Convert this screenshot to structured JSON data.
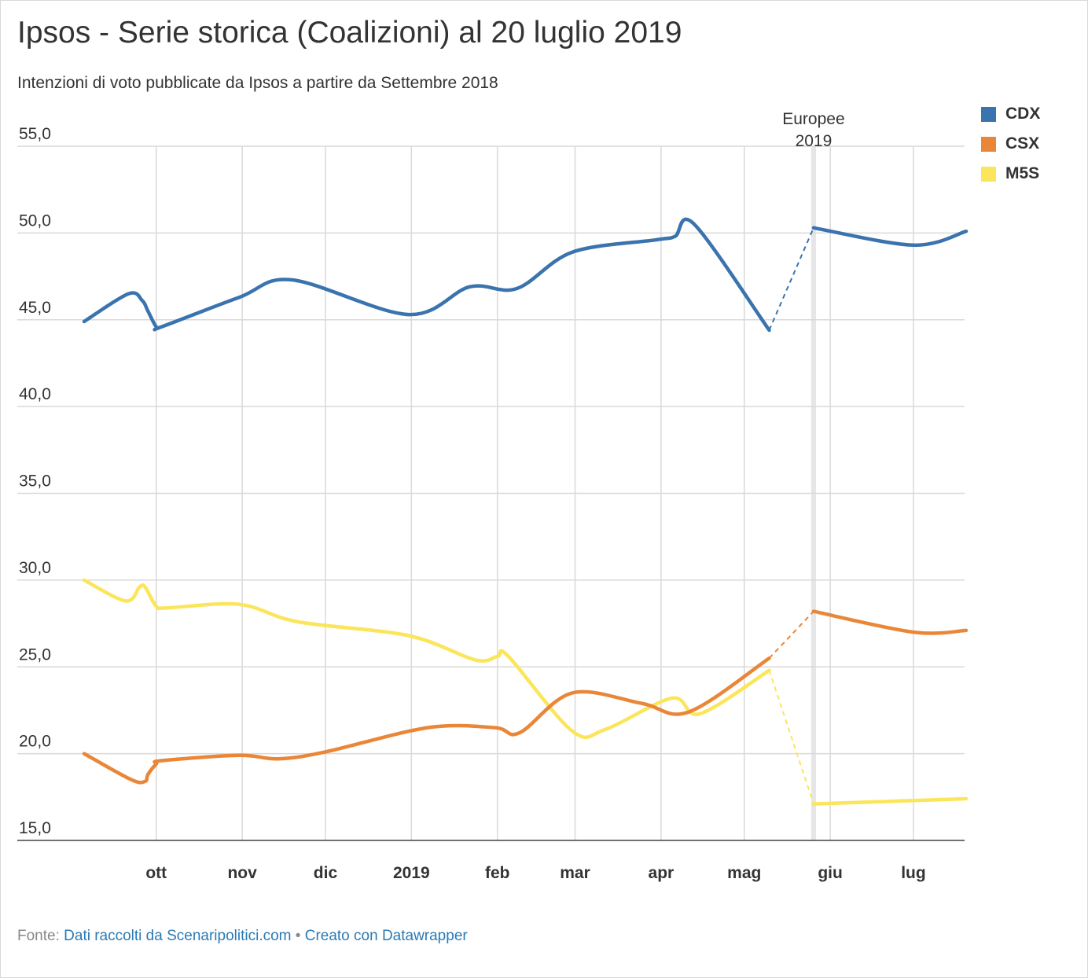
{
  "header": {
    "title": "Ipsos - Serie storica (Coalizioni) al 20 luglio 2019",
    "subtitle": "Intenzioni di voto pubblicate da Ipsos a partire da Settembre 2018"
  },
  "legend": [
    {
      "label": "CDX",
      "color": "#3a73ad"
    },
    {
      "label": "CSX",
      "color": "#ea8637"
    },
    {
      "label": "M5S",
      "color": "#fbe55b"
    }
  ],
  "footer": {
    "prefix": "Fonte:",
    "source": "Dati raccolti da Scenaripolitici.com",
    "separator": "•",
    "credit": "Creato con Datawrapper"
  },
  "chart_data": {
    "type": "line",
    "title": "Ipsos - Serie storica (Coalizioni) al 20 luglio 2019",
    "subtitle": "Intenzioni di voto pubblicate da Ipsos a partire da Settembre 2018",
    "ylim": [
      15,
      55
    ],
    "y_ticks": [
      15,
      20,
      25,
      30,
      35,
      40,
      45,
      50,
      55
    ],
    "y_tick_labels": [
      "15,0",
      "20,0",
      "25,0",
      "30,0",
      "35,0",
      "40,0",
      "45,0",
      "50,0",
      "55,0"
    ],
    "xlim": [
      "2018-09-05",
      "2019-07-20"
    ],
    "x_ticks": [
      {
        "date": "2018-10-01",
        "label": "ott"
      },
      {
        "date": "2018-11-01",
        "label": "nov"
      },
      {
        "date": "2018-12-01",
        "label": "dic"
      },
      {
        "date": "2019-01-01",
        "label": "2019"
      },
      {
        "date": "2019-02-01",
        "label": "feb"
      },
      {
        "date": "2019-03-01",
        "label": "mar"
      },
      {
        "date": "2019-04-01",
        "label": "apr"
      },
      {
        "date": "2019-05-01",
        "label": "mag"
      },
      {
        "date": "2019-06-01",
        "label": "giu"
      },
      {
        "date": "2019-07-01",
        "label": "lug"
      }
    ],
    "grid": "horizontal and vertical",
    "legend_position": "top-right",
    "annotations": [
      {
        "date": "2019-05-26",
        "label": "Europee 2019"
      }
    ],
    "series": [
      {
        "name": "CDX",
        "color": "#3a73ad",
        "before": {
          "x": [
            "2018-09-05",
            "2018-09-21",
            "2018-09-26",
            "2018-09-28",
            "2018-10-01",
            "2018-10-03",
            "2018-10-31",
            "2018-11-19",
            "2018-12-31",
            "2019-01-22",
            "2019-02-08",
            "2019-02-28",
            "2019-03-30",
            "2019-04-06",
            "2019-04-13",
            "2019-05-10"
          ],
          "y": [
            44.9,
            46.5,
            46.1,
            45.5,
            44.6,
            44.6,
            46.3,
            47.3,
            45.3,
            46.9,
            46.8,
            48.9,
            49.6,
            49.8,
            50.5,
            44.4
          ]
        },
        "after": {
          "x": [
            "2019-05-26",
            "2019-07-01",
            "2019-07-20"
          ],
          "y": [
            50.3,
            49.3,
            50.1
          ]
        }
      },
      {
        "name": "CSX",
        "color": "#ea8637",
        "before": {
          "x": [
            "2018-09-05",
            "2018-09-22",
            "2018-09-27",
            "2018-09-28",
            "2018-10-01",
            "2018-10-03",
            "2018-10-31",
            "2018-11-14",
            "2018-12-01",
            "2019-01-07",
            "2019-01-31",
            "2019-02-09",
            "2019-02-28",
            "2019-03-25",
            "2019-04-11",
            "2019-05-10"
          ],
          "y": [
            20.0,
            18.5,
            18.4,
            18.8,
            19.4,
            19.6,
            19.9,
            19.7,
            20.1,
            21.5,
            21.5,
            21.2,
            23.5,
            22.9,
            22.4,
            25.5
          ]
        },
        "after": {
          "x": [
            "2019-05-26",
            "2019-07-01",
            "2019-07-20"
          ],
          "y": [
            28.2,
            27.0,
            27.1
          ]
        }
      },
      {
        "name": "M5S",
        "color": "#fbe55b",
        "before": {
          "x": [
            "2018-09-05",
            "2018-09-20",
            "2018-09-25",
            "2018-09-27",
            "2018-10-01",
            "2018-10-05",
            "2018-10-31",
            "2018-11-21",
            "2018-12-31",
            "2019-01-24",
            "2019-02-01",
            "2019-02-05",
            "2019-02-28",
            "2019-03-12",
            "2019-04-05",
            "2019-04-15",
            "2019-05-10"
          ],
          "y": [
            30.0,
            28.8,
            29.6,
            29.6,
            28.5,
            28.4,
            28.6,
            27.6,
            26.8,
            25.4,
            25.6,
            25.6,
            21.3,
            21.4,
            23.2,
            22.3,
            24.8
          ]
        },
        "after": {
          "x": [
            "2019-05-26",
            "2019-07-01",
            "2019-07-20"
          ],
          "y": [
            17.1,
            17.3,
            17.4
          ]
        }
      }
    ]
  }
}
